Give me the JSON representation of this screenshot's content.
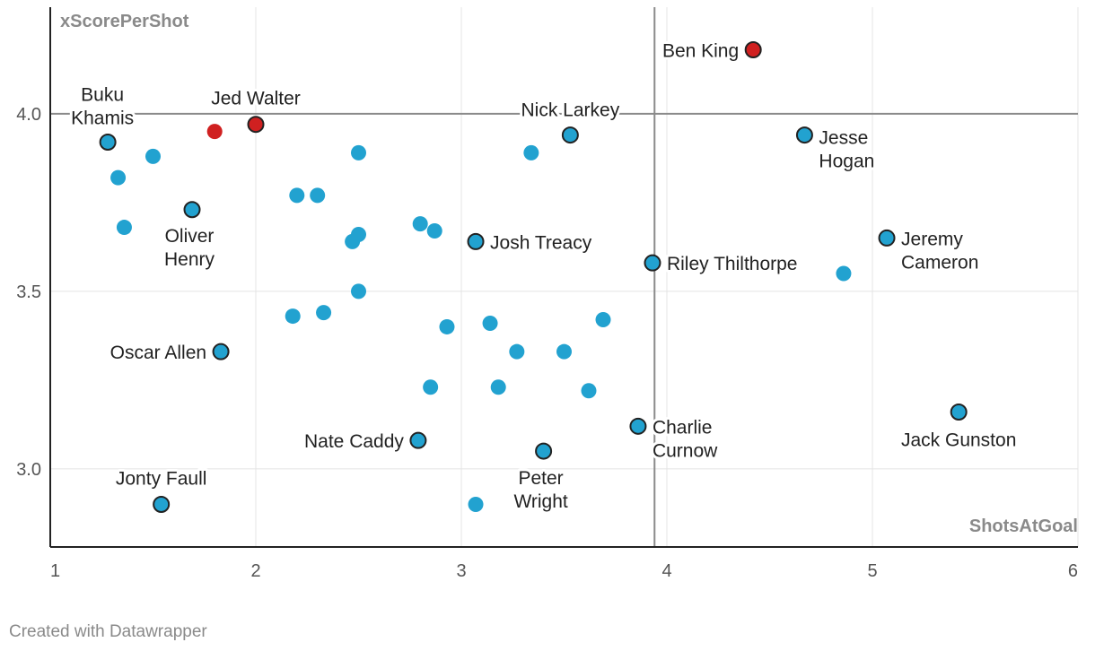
{
  "credit": "Created with Datawrapper",
  "chart_data": {
    "type": "scatter",
    "xlabel": "ShotsAtGoal",
    "ylabel": "xScorePerShot",
    "xlim": [
      1,
      6
    ],
    "ylim": [
      2.78,
      4.3
    ],
    "x_ticks": [
      "1",
      "2",
      "3",
      "4",
      "5",
      "6"
    ],
    "y_ticks": [
      "3.0",
      "3.5",
      "4.0"
    ],
    "reference_lines": {
      "x": 3.94,
      "y": 4.0
    },
    "grid": true,
    "colors": {
      "point": "#22a2d0",
      "highlight": "#d02020",
      "outline": "#222222",
      "reference": "#8a8a8a",
      "grid": "#e4e4e4"
    },
    "points": [
      {
        "x": 4.42,
        "y": 4.18,
        "label": [
          "Ben King"
        ],
        "color": "highlight",
        "outlined": true
      },
      {
        "x": 2.0,
        "y": 3.97,
        "label": [
          "Jed Walter"
        ],
        "color": "highlight",
        "outlined": true
      },
      {
        "x": 1.8,
        "y": 3.95,
        "color": "highlight"
      },
      {
        "x": 1.28,
        "y": 3.92,
        "label": [
          "Buku",
          "Khamis"
        ],
        "color": "point",
        "outlined": true
      },
      {
        "x": 3.53,
        "y": 3.94,
        "label": [
          "Nick Larkey"
        ],
        "color": "point",
        "outlined": true
      },
      {
        "x": 4.67,
        "y": 3.94,
        "label": [
          "Jesse",
          "Hogan"
        ],
        "color": "point",
        "outlined": true
      },
      {
        "x": 1.69,
        "y": 3.73,
        "label": [
          "Oliver",
          "Henry"
        ],
        "color": "point",
        "outlined": true
      },
      {
        "x": 3.07,
        "y": 3.64,
        "label": [
          "Josh Treacy"
        ],
        "color": "point",
        "outlined": true
      },
      {
        "x": 3.93,
        "y": 3.58,
        "label": [
          "Riley Thilthorpe"
        ],
        "color": "point",
        "outlined": true
      },
      {
        "x": 5.07,
        "y": 3.65,
        "label": [
          "Jeremy",
          "Cameron"
        ],
        "color": "point",
        "outlined": true
      },
      {
        "x": 1.83,
        "y": 3.33,
        "label": [
          "Oscar Allen"
        ],
        "color": "point",
        "outlined": true
      },
      {
        "x": 2.79,
        "y": 3.08,
        "label": [
          "Nate Caddy"
        ],
        "color": "point",
        "outlined": true
      },
      {
        "x": 3.4,
        "y": 3.05,
        "label": [
          "Peter",
          "Wright"
        ],
        "color": "point",
        "outlined": true
      },
      {
        "x": 3.86,
        "y": 3.12,
        "label": [
          "Charlie",
          "Curnow"
        ],
        "color": "point",
        "outlined": true
      },
      {
        "x": 5.42,
        "y": 3.16,
        "label": [
          "Jack Gunston"
        ],
        "color": "point",
        "outlined": true
      },
      {
        "x": 1.54,
        "y": 2.9,
        "label": [
          "Jonty Faull"
        ],
        "color": "point",
        "outlined": true
      },
      {
        "x": 1.5,
        "y": 3.88,
        "color": "point"
      },
      {
        "x": 1.33,
        "y": 3.82,
        "color": "point"
      },
      {
        "x": 1.36,
        "y": 3.68,
        "color": "point"
      },
      {
        "x": 2.5,
        "y": 3.89,
        "color": "point"
      },
      {
        "x": 3.34,
        "y": 3.89,
        "color": "point"
      },
      {
        "x": 2.2,
        "y": 3.77,
        "color": "point"
      },
      {
        "x": 2.3,
        "y": 3.77,
        "color": "point"
      },
      {
        "x": 2.8,
        "y": 3.69,
        "color": "point"
      },
      {
        "x": 2.87,
        "y": 3.67,
        "color": "point"
      },
      {
        "x": 2.5,
        "y": 3.66,
        "color": "point"
      },
      {
        "x": 2.47,
        "y": 3.64,
        "color": "point"
      },
      {
        "x": 2.5,
        "y": 3.5,
        "color": "point"
      },
      {
        "x": 2.18,
        "y": 3.43,
        "color": "point"
      },
      {
        "x": 2.33,
        "y": 3.44,
        "color": "point"
      },
      {
        "x": 2.93,
        "y": 3.4,
        "color": "point"
      },
      {
        "x": 3.14,
        "y": 3.41,
        "color": "point"
      },
      {
        "x": 3.69,
        "y": 3.42,
        "color": "point"
      },
      {
        "x": 3.27,
        "y": 3.33,
        "color": "point"
      },
      {
        "x": 3.5,
        "y": 3.33,
        "color": "point"
      },
      {
        "x": 2.85,
        "y": 3.23,
        "color": "point"
      },
      {
        "x": 3.18,
        "y": 3.23,
        "color": "point"
      },
      {
        "x": 3.62,
        "y": 3.22,
        "color": "point"
      },
      {
        "x": 4.86,
        "y": 3.55,
        "color": "point"
      },
      {
        "x": 3.07,
        "y": 2.9,
        "color": "point"
      }
    ]
  }
}
